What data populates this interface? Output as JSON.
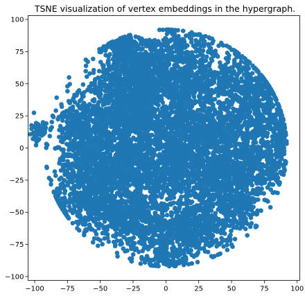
{
  "chart_data": {
    "type": "scatter",
    "title": "TSNE visualization of vertex embeddings in the hypergraph.",
    "xlabel": "",
    "ylabel": "",
    "xlim": [
      -105,
      102
    ],
    "ylim": [
      -103,
      103
    ],
    "xticks": [
      "−100",
      "−75",
      "−50",
      "−25",
      "0",
      "25",
      "50",
      "75",
      "100"
    ],
    "yticks": [
      "100",
      "75",
      "50",
      "25",
      "0",
      "−25",
      "−50",
      "−75",
      "−100"
    ],
    "grid": false,
    "series": [
      {
        "color": "#1f77b4",
        "clusters": [
          {
            "cx": -25,
            "cy": 55,
            "sx": 14,
            "sy": 12,
            "n": 600
          },
          {
            "cx": 10,
            "cy": 55,
            "sx": 18,
            "sy": 12,
            "n": 550
          },
          {
            "cx": 55,
            "cy": 50,
            "sx": 14,
            "sy": 14,
            "n": 400
          },
          {
            "cx": -45,
            "cy": 20,
            "sx": 14,
            "sy": 16,
            "n": 500
          },
          {
            "cx": -20,
            "cy": 25,
            "sx": 14,
            "sy": 12,
            "n": 500
          },
          {
            "cx": 15,
            "cy": 15,
            "sx": 14,
            "sy": 14,
            "n": 500
          },
          {
            "cx": 45,
            "cy": 10,
            "sx": 14,
            "sy": 14,
            "n": 450
          },
          {
            "cx": 75,
            "cy": 20,
            "sx": 8,
            "sy": 14,
            "n": 250
          },
          {
            "cx": -70,
            "cy": 15,
            "sx": 8,
            "sy": 12,
            "n": 200
          },
          {
            "cx": -60,
            "cy": -20,
            "sx": 12,
            "sy": 14,
            "n": 400
          },
          {
            "cx": -30,
            "cy": -15,
            "sx": 14,
            "sy": 12,
            "n": 500
          },
          {
            "cx": 5,
            "cy": -15,
            "sx": 14,
            "sy": 12,
            "n": 500
          },
          {
            "cx": 40,
            "cy": -20,
            "sx": 14,
            "sy": 12,
            "n": 450
          },
          {
            "cx": 72,
            "cy": -15,
            "sx": 10,
            "sy": 12,
            "n": 250
          },
          {
            "cx": -25,
            "cy": -55,
            "sx": 14,
            "sy": 12,
            "n": 600
          },
          {
            "cx": 20,
            "cy": -60,
            "sx": 14,
            "sy": 12,
            "n": 600
          },
          {
            "cx": 55,
            "cy": -45,
            "sx": 10,
            "sy": 10,
            "n": 250
          },
          {
            "cx": -55,
            "cy": -45,
            "sx": 10,
            "sy": 10,
            "n": 250
          },
          {
            "cx": -30,
            "cy": 80,
            "sx": 10,
            "sy": 5,
            "n": 150
          },
          {
            "cx": 10,
            "cy": 80,
            "sx": 14,
            "sy": 6,
            "n": 150
          },
          {
            "cx": 0,
            "cy": -85,
            "sx": 12,
            "sy": 5,
            "n": 120
          },
          {
            "cx": -97,
            "cy": 12,
            "sx": 3,
            "sy": 4,
            "n": 60
          },
          {
            "cx": 82,
            "cy": 45,
            "sx": 5,
            "sy": 8,
            "n": 80
          },
          {
            "cx": 88,
            "cy": 5,
            "sx": 3,
            "sy": 12,
            "n": 80
          },
          {
            "cx": -80,
            "cy": -45,
            "sx": 4,
            "sy": 8,
            "n": 60
          },
          {
            "cx": 2,
            "cy": 93,
            "sx": 2,
            "sy": 1.5,
            "n": 15
          }
        ]
      }
    ]
  }
}
